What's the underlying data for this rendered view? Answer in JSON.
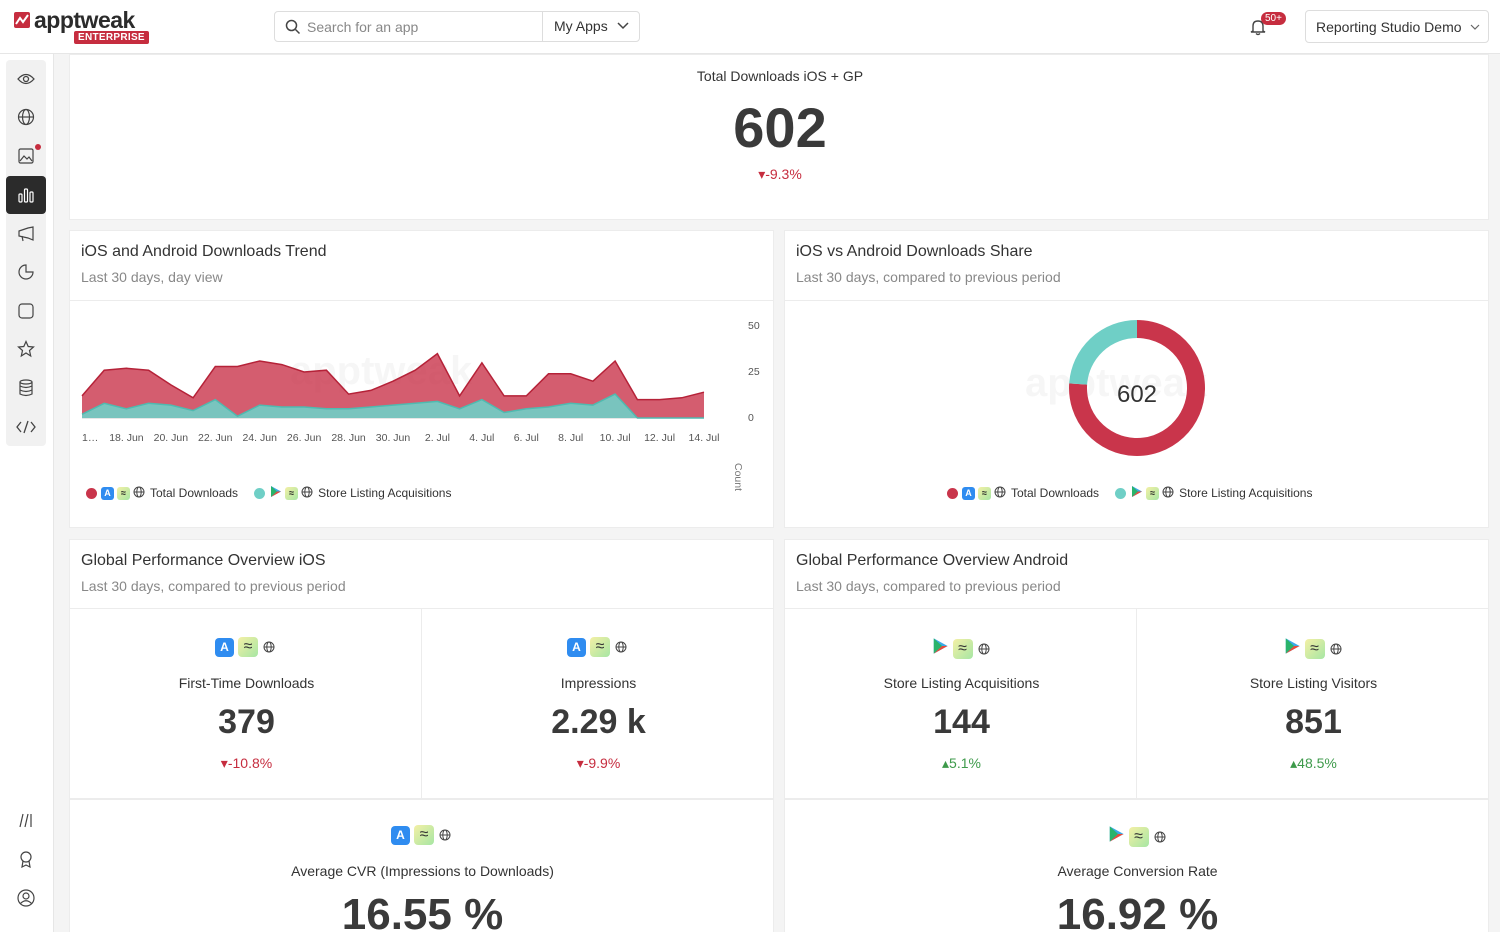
{
  "header": {
    "logo_text": "apptweak",
    "logo_badge": "ENTERPRISE",
    "search_placeholder": "Search for an app",
    "my_apps_label": "My Apps",
    "notifications_count": "50+",
    "workspace_label": "Reporting Studio Demo"
  },
  "sidebar": {
    "items": [
      "eye-icon",
      "globe-icon",
      "image-icon",
      "bar-chart-icon",
      "megaphone-icon",
      "pie-chart-icon",
      "square-icon",
      "star-icon",
      "database-icon",
      "code-icon"
    ],
    "active": "bar-chart-icon",
    "bottom": [
      "library-icon",
      "award-icon",
      "user-icon"
    ]
  },
  "total": {
    "title": "Total Downloads iOS + GP",
    "value": "602",
    "delta": "-9.3%"
  },
  "trend": {
    "title": "iOS and Android Downloads Trend",
    "subtitle": "Last 30 days, day view",
    "y_axis_label": "Count",
    "legend": [
      {
        "label": "Total Downloads",
        "color": "#c9354b"
      },
      {
        "label": "Store Listing Acquisitions",
        "color": "#6fcfc6"
      }
    ]
  },
  "share": {
    "title": "iOS vs Android Downloads Share",
    "subtitle": "Last 30 days, compared to previous period",
    "center_value": "602",
    "legend": [
      {
        "label": "Total Downloads",
        "color": "#c9354b"
      },
      {
        "label": "Store Listing Acquisitions",
        "color": "#6fcfc6"
      }
    ]
  },
  "ios_overview": {
    "title": "Global Performance Overview iOS",
    "subtitle": "Last 30 days, compared to previous period",
    "kpis": [
      {
        "label": "First-Time Downloads",
        "value": "379",
        "delta": "-10.8%",
        "trend": "down"
      },
      {
        "label": "Impressions",
        "value": "2.29 k",
        "delta": "-9.9%",
        "trend": "down"
      }
    ],
    "cvr": {
      "label": "Average CVR (Impressions to Downloads)",
      "value": "16.55 %"
    }
  },
  "android_overview": {
    "title": "Global Performance Overview Android",
    "subtitle": "Last 30 days, compared to previous period",
    "kpis": [
      {
        "label": "Store Listing Acquisitions",
        "value": "144",
        "delta": "5.1%",
        "trend": "up"
      },
      {
        "label": "Store Listing Visitors",
        "value": "851",
        "delta": "48.5%",
        "trend": "up"
      }
    ],
    "cvr": {
      "label": "Average Conversion Rate",
      "value": "16.92 %"
    }
  },
  "chart_data": [
    {
      "type": "area",
      "title": "iOS and Android Downloads Trend",
      "ylabel": "Count",
      "ylim": [
        0,
        50
      ],
      "yticks": [
        0,
        25,
        50
      ],
      "x": [
        "1…",
        "",
        "18. Jun",
        "",
        "20. Jun",
        "",
        "22. Jun",
        "",
        "24. Jun",
        "",
        "26. Jun",
        "",
        "28. Jun",
        "",
        "30. Jun",
        "",
        "2. Jul",
        "",
        "4. Jul",
        "",
        "6. Jul",
        "",
        "8. Jul",
        "",
        "10. Jul",
        "",
        "12. Jul",
        "",
        "14. Jul"
      ],
      "tick_labels": [
        "1…",
        "18. Jun",
        "20. Jun",
        "22. Jun",
        "24. Jun",
        "26. Jun",
        "28. Jun",
        "30. Jun",
        "2. Jul",
        "4. Jul",
        "6. Jul",
        "8. Jul",
        "10. Jul",
        "12. Jul",
        "14. Jul"
      ],
      "series": [
        {
          "name": "Total Downloads",
          "color": "#c9354b",
          "values": [
            12,
            26,
            27,
            26,
            18,
            11,
            28,
            28,
            31,
            29,
            25,
            26,
            13,
            15,
            20,
            26,
            35,
            12,
            30,
            12,
            12,
            24,
            24,
            20,
            31,
            10,
            10,
            11,
            14
          ]
        },
        {
          "name": "Store Listing Acquisitions",
          "color": "#6fcfc6",
          "values": [
            2,
            8,
            5,
            8,
            7,
            4,
            10,
            1,
            7,
            6,
            6,
            5,
            5,
            6,
            7,
            8,
            9,
            5,
            10,
            3,
            5,
            6,
            8,
            7,
            13,
            0,
            0,
            0,
            0
          ]
        }
      ]
    },
    {
      "type": "pie",
      "title": "iOS vs Android Downloads Share",
      "total": 602,
      "slices": [
        {
          "name": "Total Downloads",
          "value": 458,
          "color": "#c9354b"
        },
        {
          "name": "Store Listing Acquisitions",
          "value": 144,
          "color": "#6fcfc6"
        }
      ]
    }
  ]
}
